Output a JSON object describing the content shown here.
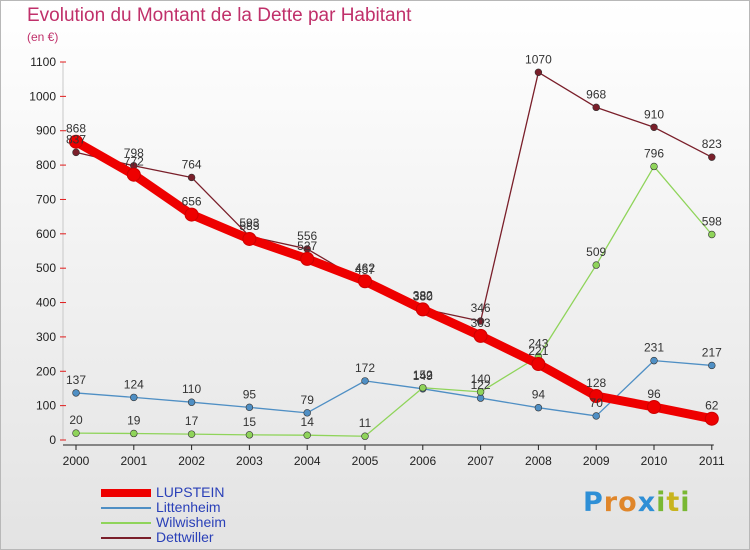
{
  "header": {
    "title": "Evolution du Montant de la Dette par Habitant",
    "unit": "(en €)"
  },
  "brand": {
    "letters": [
      {
        "ch": "P",
        "color": "#2e8fd6"
      },
      {
        "ch": "r",
        "color": "#e0862a"
      },
      {
        "ch": "o",
        "color": "#e0862a"
      },
      {
        "ch": "x",
        "color": "#2e8fd6"
      },
      {
        "ch": "i",
        "color": "#79b833"
      },
      {
        "ch": "t",
        "color": "#c8b41e"
      },
      {
        "ch": "i",
        "color": "#79b833"
      }
    ]
  },
  "chart_data": {
    "type": "line",
    "title": "Evolution du Montant de la Dette par Habitant",
    "ylabel": "(en €)",
    "x": [
      "2000",
      "2001",
      "2002",
      "2003",
      "2004",
      "2005",
      "2006",
      "2007",
      "2008",
      "2009",
      "2010",
      "2011"
    ],
    "ylim": [
      0,
      1100
    ],
    "yticks": [
      0,
      100,
      200,
      300,
      400,
      500,
      600,
      700,
      800,
      900,
      1000,
      1100
    ],
    "grid": false,
    "legend": "bottom-left",
    "series": [
      {
        "name": "Dettwiller",
        "color": "#7a1f2a",
        "width": 1.3,
        "values": [
          837,
          798,
          764,
          593,
          556,
          457,
          382,
          346,
          1070,
          968,
          910,
          823
        ]
      },
      {
        "name": "Littenheim",
        "color": "#4f8fc4",
        "width": 1.3,
        "values": [
          137,
          124,
          110,
          95,
          79,
          172,
          149,
          122,
          94,
          70,
          231,
          217
        ]
      },
      {
        "name": "Wilwisheim",
        "color": "#8fd45a",
        "width": 1.3,
        "values": [
          20,
          19,
          17,
          15,
          14,
          11,
          152,
          140,
          243,
          509,
          796,
          598
        ]
      },
      {
        "name": "LUPSTEIN",
        "color": "#ee0000",
        "width": 9,
        "values": [
          868,
          772,
          656,
          585,
          527,
          462,
          380,
          303,
          221,
          128,
          96,
          62
        ]
      }
    ],
    "legend_order": [
      "LUPSTEIN",
      "Littenheim",
      "Wilwisheim",
      "Dettwiller"
    ]
  }
}
